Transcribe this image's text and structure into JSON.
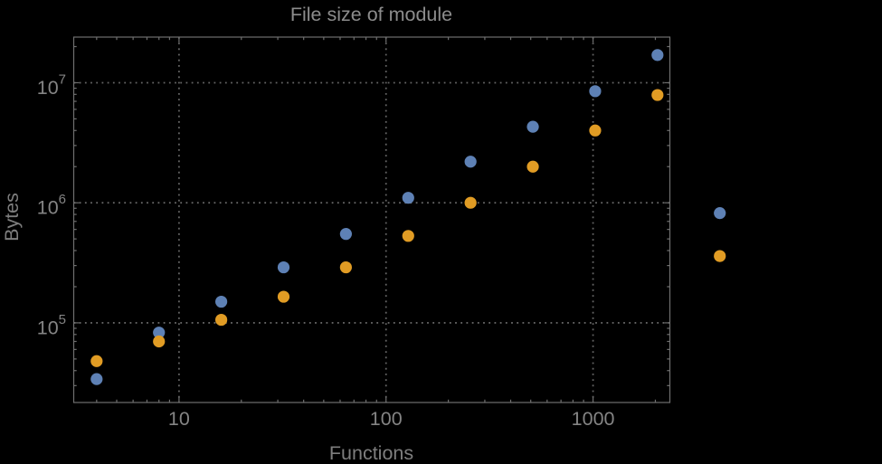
{
  "title": "File size of module",
  "colors": {
    "background": "#000000",
    "frame": "#6f6f6f",
    "gridline": "#656565",
    "tick_label": "#848484",
    "title_text": "#8c8c8c",
    "axis_label_text": "#7e7e7e",
    "series_blue": "#5e81b5",
    "series_orange": "#e19c24"
  },
  "chart_data": {
    "type": "scatter",
    "title": "File size of module",
    "xlabel": "Functions",
    "ylabel": "Bytes",
    "x_scale": "log",
    "y_scale": "log",
    "xlim": [
      3.1,
      2350
    ],
    "ylim": [
      21700,
      24000000
    ],
    "grid": {
      "style": "dotted",
      "x_gridlines": [
        10,
        100,
        1000
      ],
      "y_gridlines": [
        100000,
        1000000,
        10000000
      ]
    },
    "x_major_ticks": [
      10,
      100,
      1000
    ],
    "x_tick_labels": [
      "10",
      "100",
      "1000"
    ],
    "y_major_ticks": [
      100000,
      1000000,
      10000000
    ],
    "y_tick_base": "10",
    "y_tick_exponents": [
      "5",
      "6",
      "7"
    ],
    "legend": "none",
    "marker": {
      "shape": "circle",
      "radius_px": 6.6
    },
    "x": [
      4,
      8,
      16,
      32,
      64,
      128,
      256,
      512,
      1024,
      2048,
      4096
    ],
    "series": [
      {
        "name": "blue",
        "color": "#5e81b5",
        "values": [
          34000,
          83000,
          150000,
          290000,
          550000,
          1100000,
          2200000,
          4300000,
          8500000,
          17000000,
          820000
        ]
      },
      {
        "name": "orange",
        "color": "#e19c24",
        "values": [
          48000,
          70000,
          106000,
          165000,
          290000,
          530000,
          1000000,
          2000000,
          4000000,
          7900000,
          360000
        ]
      }
    ]
  }
}
